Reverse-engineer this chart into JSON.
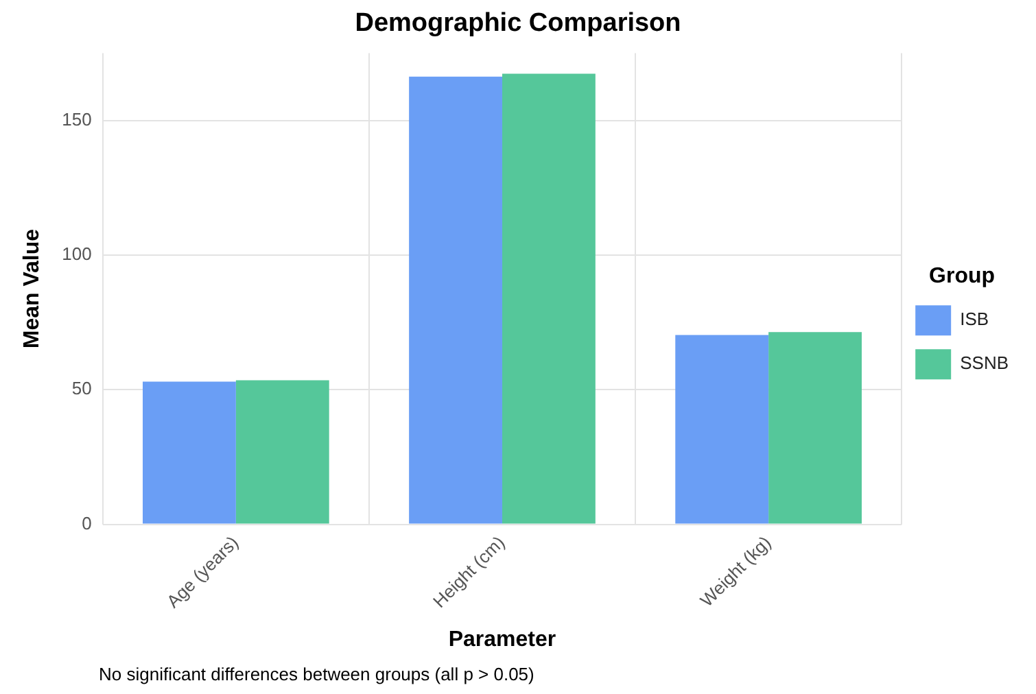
{
  "chart_data": {
    "type": "bar",
    "title": "Demographic Comparison",
    "xlabel": "Parameter",
    "ylabel": "Mean Value",
    "legend_title": "Group",
    "categories": [
      "Age (years)",
      "Height (cm)",
      "Weight (kg)"
    ],
    "series": [
      {
        "name": "ISB",
        "color": "#6a9ef5",
        "values": [
          53,
          166.3,
          70.3
        ]
      },
      {
        "name": "SSNB",
        "color": "#55c79a",
        "values": [
          53.5,
          167.4,
          71.4
        ]
      }
    ],
    "ylim": [
      0,
      175
    ],
    "yticks": [
      0,
      50,
      100,
      150
    ],
    "grid": true,
    "legend": "right",
    "annotations": [
      "No significant differences between groups (all p > 0.05)"
    ]
  }
}
